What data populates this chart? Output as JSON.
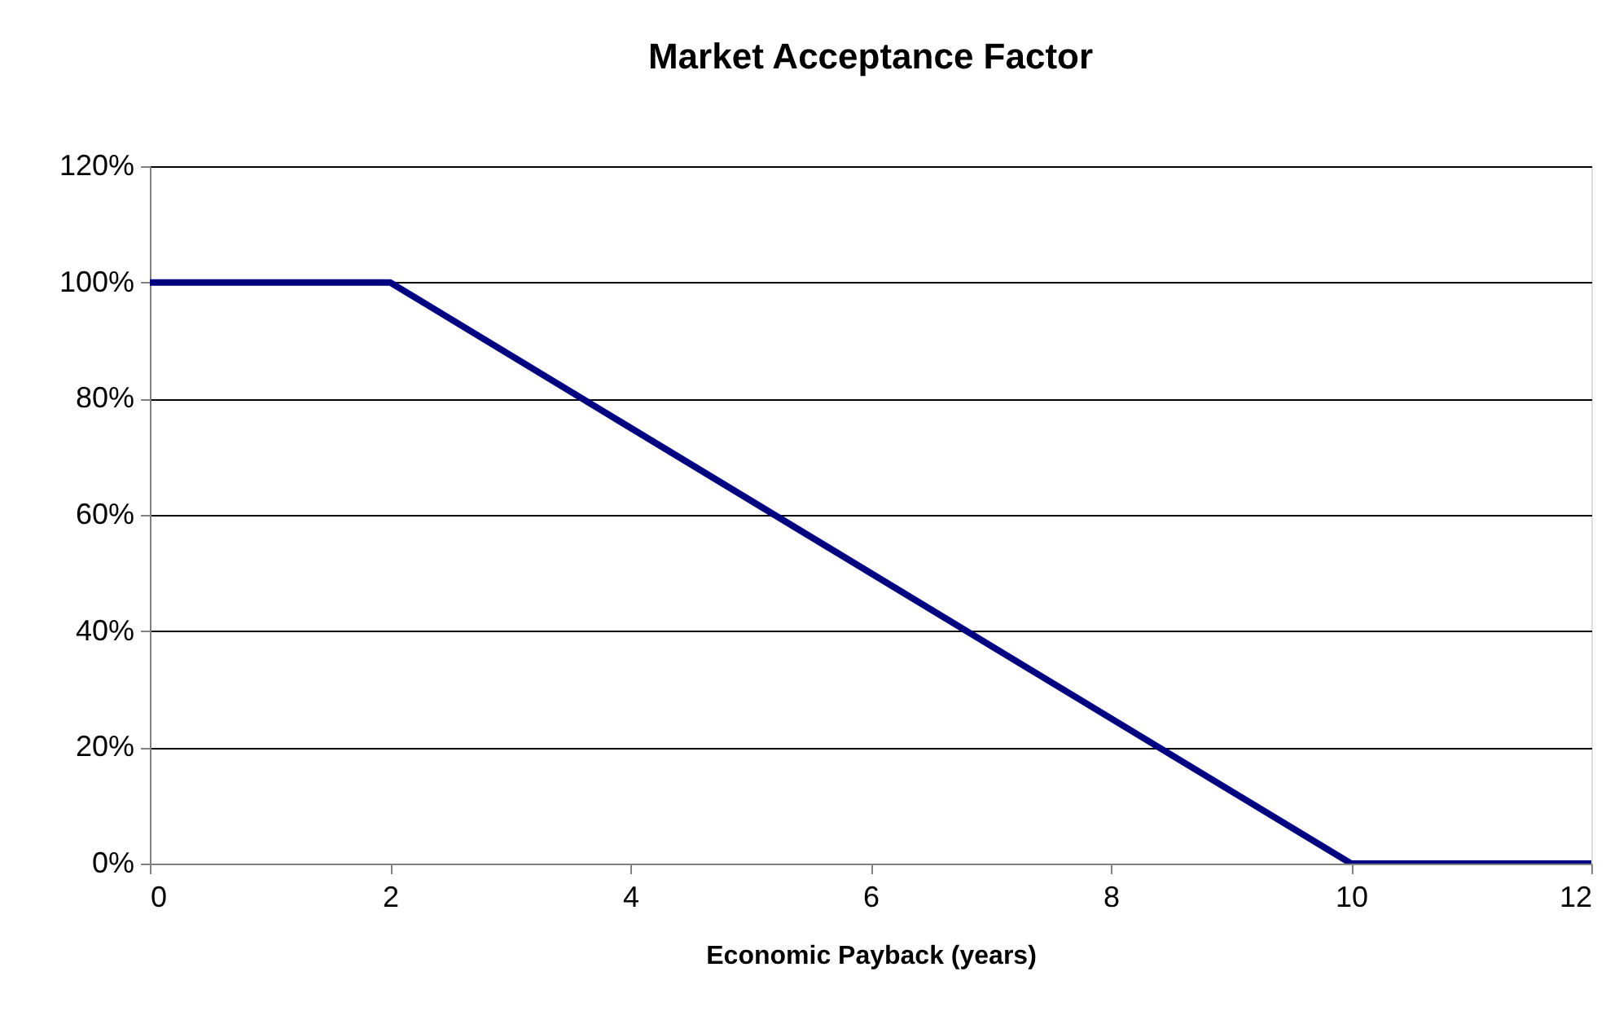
{
  "chart_data": {
    "type": "line",
    "title": "Market Acceptance Factor",
    "xlabel": "Economic Payback (years)",
    "x": [
      0,
      2,
      10,
      12
    ],
    "series": [
      {
        "color": "#000080",
        "values": [
          100,
          100,
          0,
          0
        ]
      }
    ],
    "xlim": [
      0,
      12
    ],
    "xticks": [
      0,
      2,
      4,
      6,
      8,
      10,
      12
    ],
    "ylim": [
      0,
      120
    ],
    "yticks": [
      {
        "value": 0,
        "label": "0%"
      },
      {
        "value": 20,
        "label": "20%"
      },
      {
        "value": 40,
        "label": "40%"
      },
      {
        "value": 60,
        "label": "60%"
      },
      {
        "value": 80,
        "label": "80%"
      },
      {
        "value": 100,
        "label": "100%"
      },
      {
        "value": 120,
        "label": "120%"
      }
    ],
    "grid": "y",
    "legend": false,
    "marker": "none",
    "line_style": "solid"
  }
}
